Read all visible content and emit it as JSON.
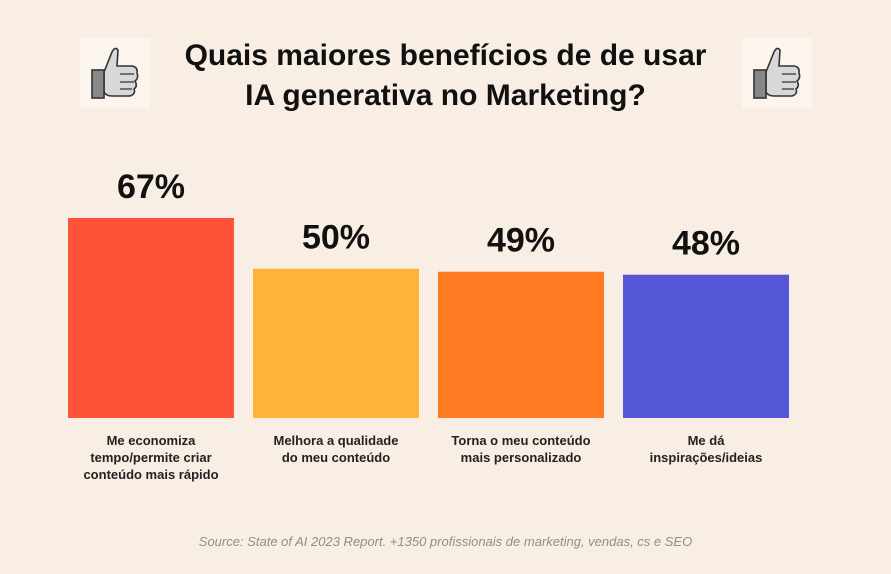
{
  "title_line1": "Quais maiores benefícios de de usar",
  "title_line2": "IA generativa no Marketing?",
  "icons": [
    "thumbs-up-icon",
    "thumbs-up-icon"
  ],
  "source": "Source: State of AI 2023 Report. +1350 profissionais de marketing, vendas, cs e SEO",
  "chart_data": {
    "type": "bar",
    "title": "Quais maiores benefícios de de usar IA generativa no Marketing?",
    "categories": [
      [
        "Me economiza",
        "tempo/permite criar",
        "conteúdo mais rápido"
      ],
      [
        "Melhora a qualidade",
        "do meu conteúdo"
      ],
      [
        "Torna o meu conteúdo",
        "mais personalizado"
      ],
      [
        "Me dá",
        "inspirações/ideias"
      ]
    ],
    "values": [
      67,
      50,
      49,
      48
    ],
    "value_labels": [
      "67%",
      "50%",
      "49%",
      "48%"
    ],
    "colors": [
      "#ff5339",
      "#ffb338",
      "#ff7a22",
      "#5656d8"
    ],
    "ylim": [
      0,
      100
    ],
    "grid": false,
    "legend": "none"
  }
}
